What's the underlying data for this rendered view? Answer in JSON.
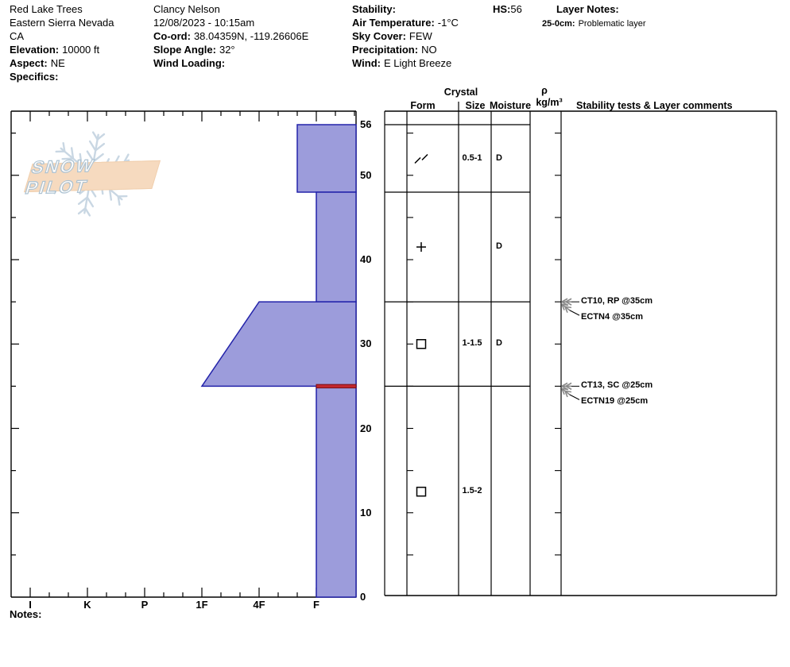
{
  "header": {
    "site": {
      "name": "Red Lake Trees",
      "region": "Eastern Sierra Nevada",
      "state": "CA",
      "elevation_label": "Elevation:",
      "elevation_value": "10000 ft",
      "aspect_label": "Aspect:",
      "aspect_value": "NE",
      "specifics_label": "Specifics:",
      "specifics_value": ""
    },
    "observer": {
      "name": "Clancy Nelson",
      "datetime": "12/08/2023 - 10:15am",
      "coord_label": "Co-ord:",
      "coord_value": "38.04359N, -119.26606E",
      "slope_angle_label": "Slope Angle:",
      "slope_angle_value": "32°",
      "wind_loading_label": "Wind Loading:",
      "wind_loading_value": ""
    },
    "conditions": {
      "stability_label": "Stability:",
      "stability_value": "",
      "air_temp_label": "Air Temperature:",
      "air_temp_value": "-1°C",
      "sky_cover_label": "Sky Cover:",
      "sky_cover_value": "FEW",
      "precipitation_label": "Precipitation:",
      "precipitation_value": "NO",
      "wind_label": "Wind:",
      "wind_value": "E Light Breeze"
    },
    "hs_label": "HS:",
    "hs_value": "56",
    "layer_notes_title": "Layer Notes:",
    "layer_note_depth": "25-0cm:",
    "layer_note_text": "Problematic layer"
  },
  "logo": {
    "text": "SNOW PILOT"
  },
  "table_header": {
    "crystal": "Crystal",
    "form": "Form",
    "size": "Size",
    "moisture": "Moisture",
    "rho": "ρ",
    "rho_units": "kg/m³",
    "comments": "Stability tests & Layer comments"
  },
  "notes_label": "Notes:",
  "chart_data": {
    "type": "bar",
    "subtype": "snow-hardness-profile",
    "title": "Snow pit hardness profile",
    "depth_axis": {
      "unit": "cm",
      "max": 56,
      "labeled_ticks": [
        56,
        50,
        40,
        30,
        20,
        10,
        0
      ],
      "minor_tick_cm": 5
    },
    "hardness_axis": {
      "labels": [
        "I",
        "K",
        "P",
        "1F",
        "4F",
        "F"
      ],
      "minor_divisions_per_step": 3,
      "orientation": "harder-to-the-left"
    },
    "layers": [
      {
        "top_cm": 56,
        "bottom_cm": 48,
        "hardness": "F+",
        "grain_form": "DF",
        "grain_size_mm": "0.5-1",
        "moisture": "D"
      },
      {
        "top_cm": 48,
        "bottom_cm": 35,
        "hardness": "F",
        "grain_form": "PP",
        "grain_size_mm": "",
        "moisture": "D"
      },
      {
        "top_cm": 35,
        "bottom_cm": 25,
        "hardness_top": "4F",
        "hardness_bottom": "1F",
        "grain_form": "FC",
        "grain_size_mm": "1-1.5",
        "moisture": "D"
      },
      {
        "top_cm": 25,
        "bottom_cm": 0,
        "hardness": "F",
        "grain_form": "FC",
        "grain_size_mm": "1.5-2",
        "moisture": ""
      }
    ],
    "problem_layer": {
      "depth_cm": 25,
      "label": "Problematic layer"
    },
    "stability_tests": [
      {
        "label": "CT10, RP @35cm",
        "depth_cm": 35,
        "kind": "ct"
      },
      {
        "label": "ECTN4 @35cm",
        "depth_cm": 35,
        "kind": "ect"
      },
      {
        "label": "CT13, SC @25cm",
        "depth_cm": 25,
        "kind": "ct"
      },
      {
        "label": "ECTN19 @25cm",
        "depth_cm": 25,
        "kind": "ect"
      }
    ],
    "colors": {
      "bar_fill": "#9c9cdb",
      "bar_stroke": "#2323aa",
      "problem_fill": "#c1272d",
      "problem_stroke": "#7a1018",
      "arrow_gray": "#8a8a8a",
      "flake_blue": "#c9d7e3",
      "band_peach": "#f6dabf"
    }
  }
}
